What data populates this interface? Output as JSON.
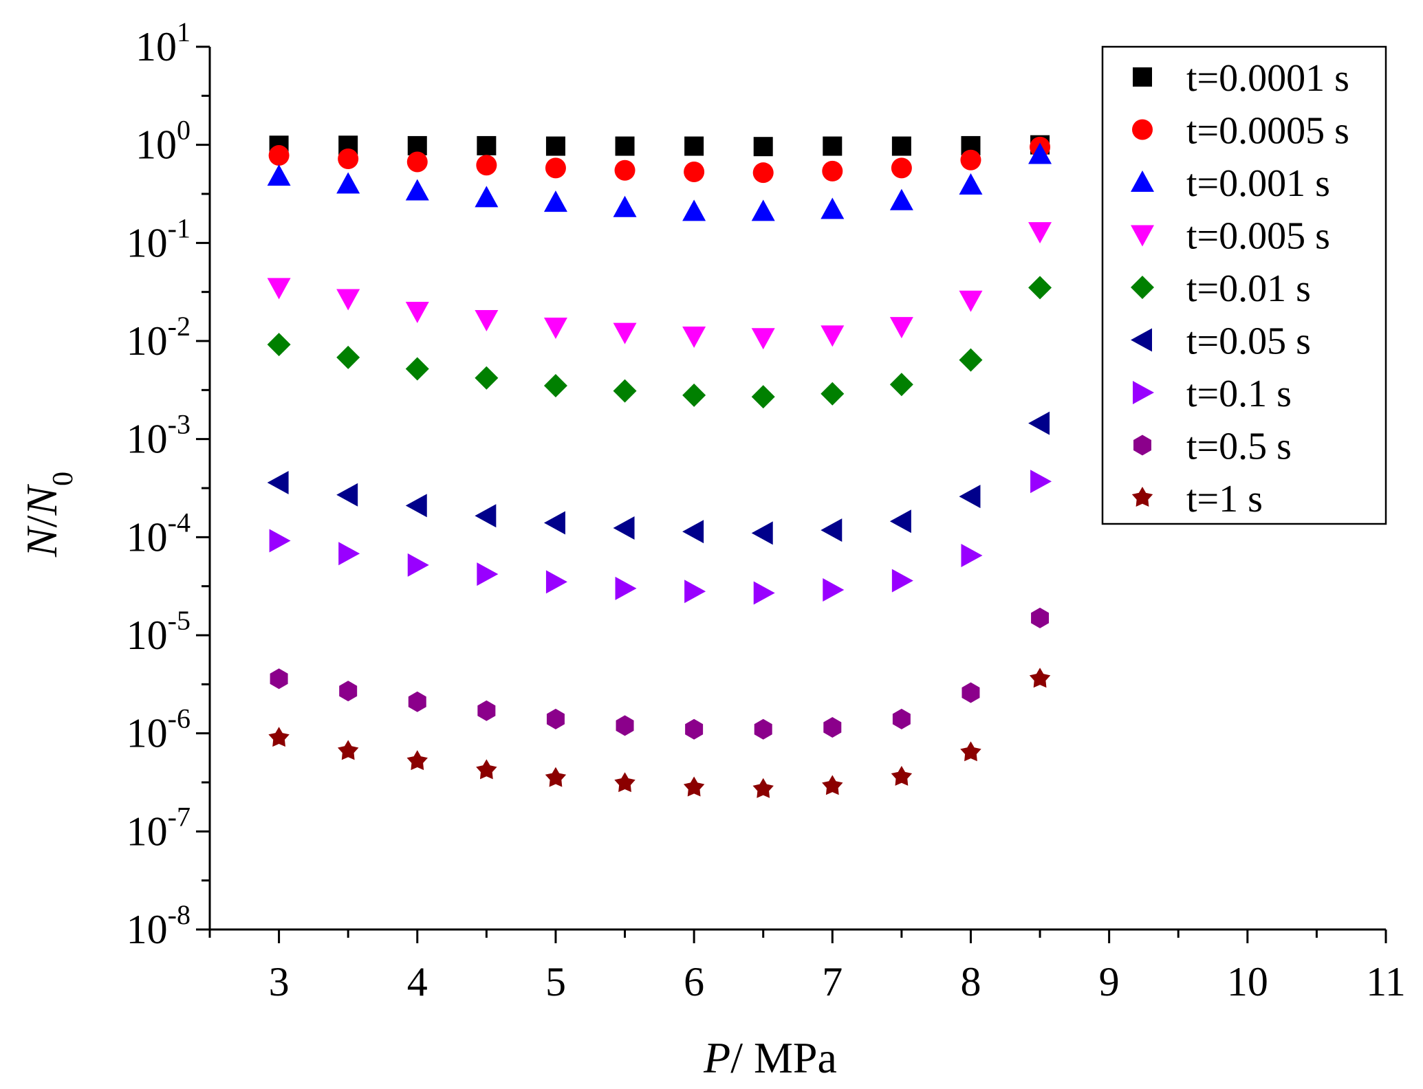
{
  "chart_data": {
    "type": "scatter",
    "title": "",
    "xlabel": {
      "var": "P",
      "unit": "MPa",
      "sep": "/ "
    },
    "ylabel": {
      "num": "N",
      "den": "N",
      "sub": "0"
    },
    "xlim": [
      2.5,
      11
    ],
    "ylim_log10": [
      -8,
      1
    ],
    "y_scale": "log",
    "x_ticks": [
      3,
      4,
      5,
      6,
      7,
      8,
      9,
      10,
      11
    ],
    "x_tick_labels": [
      "3",
      "4",
      "5",
      "6",
      "7",
      "8",
      "9",
      "10",
      "11"
    ],
    "y_ticks_exp": [
      1,
      0,
      -1,
      -2,
      -3,
      -4,
      -5,
      -6,
      -7,
      -8
    ],
    "y_tick_labels": [
      {
        "base": "10",
        "exp": "1"
      },
      {
        "base": "10",
        "exp": "0"
      },
      {
        "base": "10",
        "exp": "-1"
      },
      {
        "base": "10",
        "exp": "-2"
      },
      {
        "base": "10",
        "exp": "-3"
      },
      {
        "base": "10",
        "exp": "-4"
      },
      {
        "base": "10",
        "exp": "-5"
      },
      {
        "base": "10",
        "exp": "-6"
      },
      {
        "base": "10",
        "exp": "-7"
      },
      {
        "base": "10",
        "exp": "-8"
      }
    ],
    "legend_position": "top-right",
    "x": [
      3,
      3.5,
      4,
      4.5,
      5,
      5.5,
      6,
      6.5,
      7,
      7.5,
      8,
      8.5
    ],
    "series": [
      {
        "name": "t=0.0001 s",
        "marker": "square",
        "color": "#000000",
        "values": [
          0.99,
          0.99,
          0.98,
          0.98,
          0.97,
          0.97,
          0.97,
          0.96,
          0.97,
          0.97,
          0.98,
          1.0
        ]
      },
      {
        "name": "t=0.0005 s",
        "marker": "circle",
        "color": "#ff0000",
        "values": [
          0.78,
          0.72,
          0.67,
          0.62,
          0.58,
          0.55,
          0.53,
          0.52,
          0.54,
          0.58,
          0.7,
          0.95
        ]
      },
      {
        "name": "t=0.001 s",
        "marker": "triangle-up",
        "color": "#0000ff",
        "values": [
          0.48,
          0.4,
          0.34,
          0.29,
          0.26,
          0.23,
          0.21,
          0.21,
          0.22,
          0.27,
          0.39,
          0.8
        ]
      },
      {
        "name": "t=0.005 s",
        "marker": "triangle-down",
        "color": "#ff00ff",
        "values": [
          0.035,
          0.027,
          0.02,
          0.0165,
          0.0138,
          0.0122,
          0.0112,
          0.0108,
          0.0115,
          0.014,
          0.026,
          0.13
        ]
      },
      {
        "name": "t=0.01 s",
        "marker": "diamond",
        "color": "#008000",
        "values": [
          0.0092,
          0.0068,
          0.0052,
          0.0042,
          0.0035,
          0.0031,
          0.0028,
          0.0027,
          0.0029,
          0.0036,
          0.0064,
          0.035
        ]
      },
      {
        "name": "t=0.05 s",
        "marker": "triangle-left",
        "color": "#00008b",
        "values": [
          0.00036,
          0.00027,
          0.00021,
          0.000165,
          0.00014,
          0.000124,
          0.000114,
          0.00011,
          0.000118,
          0.000145,
          0.00026,
          0.00145
        ]
      },
      {
        "name": "t=0.1 s",
        "marker": "triangle-right",
        "color": "#9900ff",
        "values": [
          9.2e-05,
          6.8e-05,
          5.2e-05,
          4.2e-05,
          3.5e-05,
          3e-05,
          2.8e-05,
          2.7e-05,
          2.9e-05,
          3.6e-05,
          6.5e-05,
          0.00037
        ]
      },
      {
        "name": "t=0.5 s",
        "marker": "hexagon",
        "color": "#8b008b",
        "values": [
          3.6e-06,
          2.7e-06,
          2.1e-06,
          1.7e-06,
          1.4e-06,
          1.2e-06,
          1.1e-06,
          1.1e-06,
          1.15e-06,
          1.4e-06,
          2.6e-06,
          1.5e-05
        ]
      },
      {
        "name": "t=1 s",
        "marker": "star",
        "color": "#8b0000",
        "values": [
          9e-07,
          6.6e-07,
          5.2e-07,
          4.2e-07,
          3.5e-07,
          3.1e-07,
          2.8e-07,
          2.7e-07,
          2.9e-07,
          3.6e-07,
          6.4e-07,
          3.6e-06
        ]
      }
    ]
  }
}
